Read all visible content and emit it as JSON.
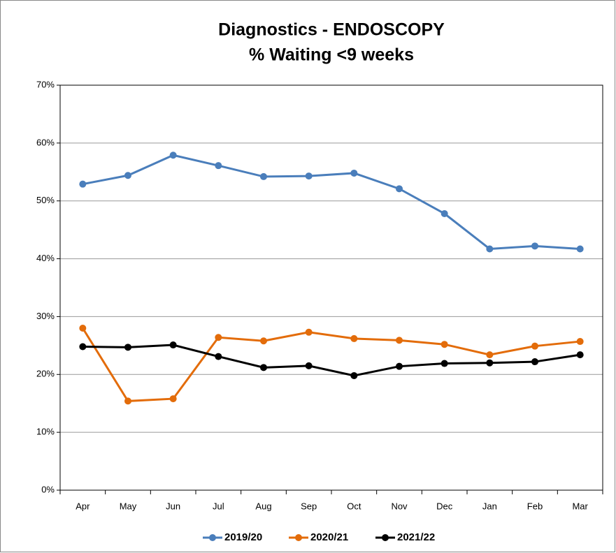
{
  "chart_data": {
    "type": "line",
    "title": "Diagnostics - ENDOSCOPY",
    "subtitle": "% Waiting <9 weeks",
    "categories": [
      "Apr",
      "May",
      "Jun",
      "Jul",
      "Aug",
      "Sep",
      "Oct",
      "Nov",
      "Dec",
      "Jan",
      "Feb",
      "Mar"
    ],
    "series": [
      {
        "name": "2019/20",
        "color": "#4a7ebb",
        "values": [
          52.9,
          54.4,
          57.9,
          56.1,
          54.2,
          54.3,
          54.8,
          52.1,
          47.8,
          41.7,
          42.2,
          41.7
        ]
      },
      {
        "name": "2020/21",
        "color": "#e36c0a",
        "values": [
          28.0,
          15.4,
          15.8,
          26.4,
          25.8,
          27.3,
          26.2,
          25.9,
          25.2,
          23.4,
          24.9,
          25.7
        ]
      },
      {
        "name": "2021/22",
        "color": "#000000",
        "values": [
          24.8,
          24.7,
          25.1,
          23.1,
          21.2,
          21.5,
          19.8,
          21.4,
          21.9,
          22.0,
          22.2,
          23.4
        ]
      }
    ],
    "ylim": [
      0,
      70
    ],
    "yticks": [
      {
        "value": 0,
        "label": "0%"
      },
      {
        "value": 10,
        "label": "10%"
      },
      {
        "value": 20,
        "label": "20%"
      },
      {
        "value": 30,
        "label": "30%"
      },
      {
        "value": 40,
        "label": "40%"
      },
      {
        "value": 50,
        "label": "50%"
      },
      {
        "value": 60,
        "label": "60%"
      },
      {
        "value": 70,
        "label": "70%"
      }
    ],
    "grid": true,
    "legend": "bottom"
  }
}
